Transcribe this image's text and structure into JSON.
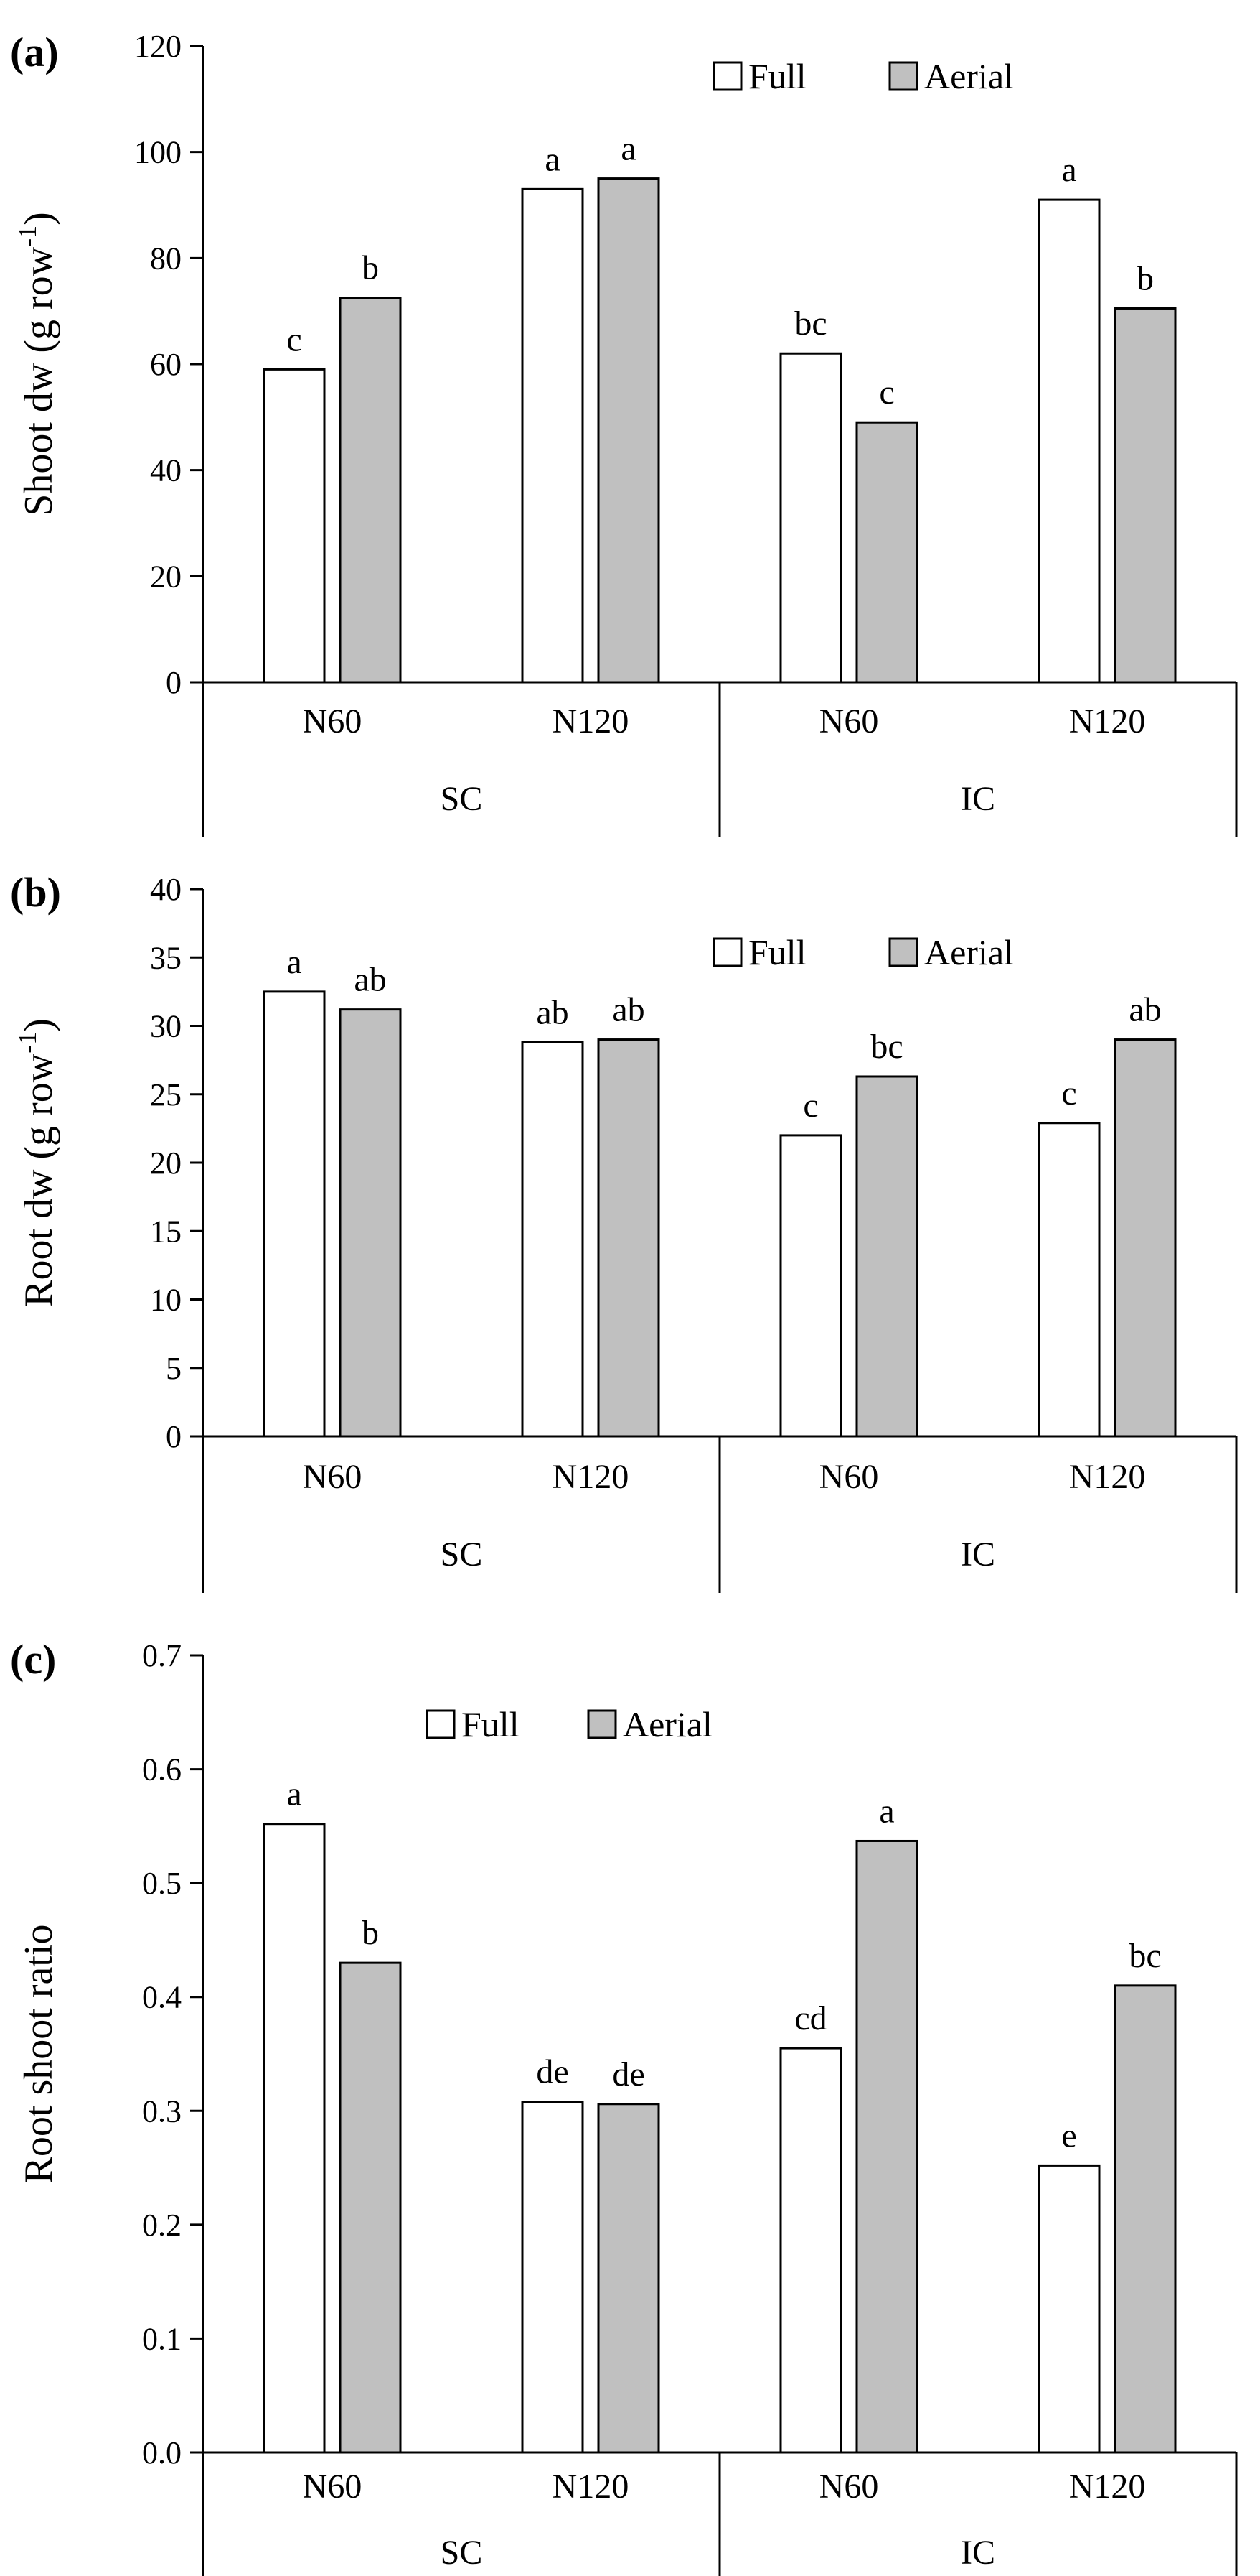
{
  "chart_data": [
    {
      "type": "bar",
      "panel_label": "(a)",
      "ylabel_main": "Shoot dw (g row",
      "ylabel_sup": "-1",
      "ylabel_close": ")",
      "ylim": [
        0,
        120
      ],
      "yticks": [
        "0",
        "20",
        "40",
        "60",
        "80",
        "100",
        "120"
      ],
      "groups": [
        {
          "name": "SC",
          "categories": [
            "N60",
            "N120"
          ]
        },
        {
          "name": "IC",
          "categories": [
            "N60",
            "N120"
          ]
        }
      ],
      "categories": [
        "N60",
        "N120",
        "N60",
        "N120"
      ],
      "series": [
        {
          "name": "Full",
          "color": "#ffffff",
          "values": [
            59,
            93,
            62,
            91
          ],
          "letters": [
            "c",
            "a",
            "bc",
            "a"
          ]
        },
        {
          "name": "Aerial",
          "color": "#c0c0c0",
          "values": [
            72.5,
            95,
            49,
            70.5
          ],
          "letters": [
            "b",
            "a",
            "c",
            "b"
          ]
        }
      ],
      "legend": [
        "Full",
        "Aerial"
      ]
    },
    {
      "type": "bar",
      "panel_label": "(b)",
      "ylabel_main": "Root dw (g row",
      "ylabel_sup": "-1",
      "ylabel_close": ")",
      "ylim": [
        0,
        40
      ],
      "yticks": [
        "0",
        "5",
        "10",
        "15",
        "20",
        "25",
        "30",
        "35",
        "40"
      ],
      "groups": [
        {
          "name": "SC",
          "categories": [
            "N60",
            "N120"
          ]
        },
        {
          "name": "IC",
          "categories": [
            "N60",
            "N120"
          ]
        }
      ],
      "categories": [
        "N60",
        "N120",
        "N60",
        "N120"
      ],
      "series": [
        {
          "name": "Full",
          "color": "#ffffff",
          "values": [
            32.5,
            28.8,
            22,
            22.9
          ],
          "letters": [
            "a",
            "ab",
            "c",
            "c"
          ]
        },
        {
          "name": "Aerial",
          "color": "#c0c0c0",
          "values": [
            31.2,
            29,
            26.3,
            29
          ],
          "letters": [
            "ab",
            "ab",
            "bc",
            "ab"
          ]
        }
      ],
      "legend": [
        "Full",
        "Aerial"
      ]
    },
    {
      "type": "bar",
      "panel_label": "(c)",
      "ylabel_main": "Root shoot ratio",
      "ylabel_sup": "",
      "ylabel_close": "",
      "ylim": [
        0,
        0.7
      ],
      "yticks": [
        "0.0",
        "0.1",
        "0.2",
        "0.3",
        "0.4",
        "0.5",
        "0.6",
        "0.7"
      ],
      "groups": [
        {
          "name": "SC",
          "categories": [
            "N60",
            "N120"
          ]
        },
        {
          "name": "IC",
          "categories": [
            "N60",
            "N120"
          ]
        }
      ],
      "categories": [
        "N60",
        "N120",
        "N60",
        "N120"
      ],
      "series": [
        {
          "name": "Full",
          "color": "#ffffff",
          "values": [
            0.552,
            0.308,
            0.355,
            0.252
          ],
          "letters": [
            "a",
            "de",
            "cd",
            "e"
          ]
        },
        {
          "name": "Aerial",
          "color": "#c0c0c0",
          "values": [
            0.43,
            0.306,
            0.537,
            0.41
          ],
          "letters": [
            "b",
            "de",
            "a",
            "bc"
          ]
        }
      ],
      "legend": [
        "Full",
        "Aerial"
      ]
    }
  ]
}
